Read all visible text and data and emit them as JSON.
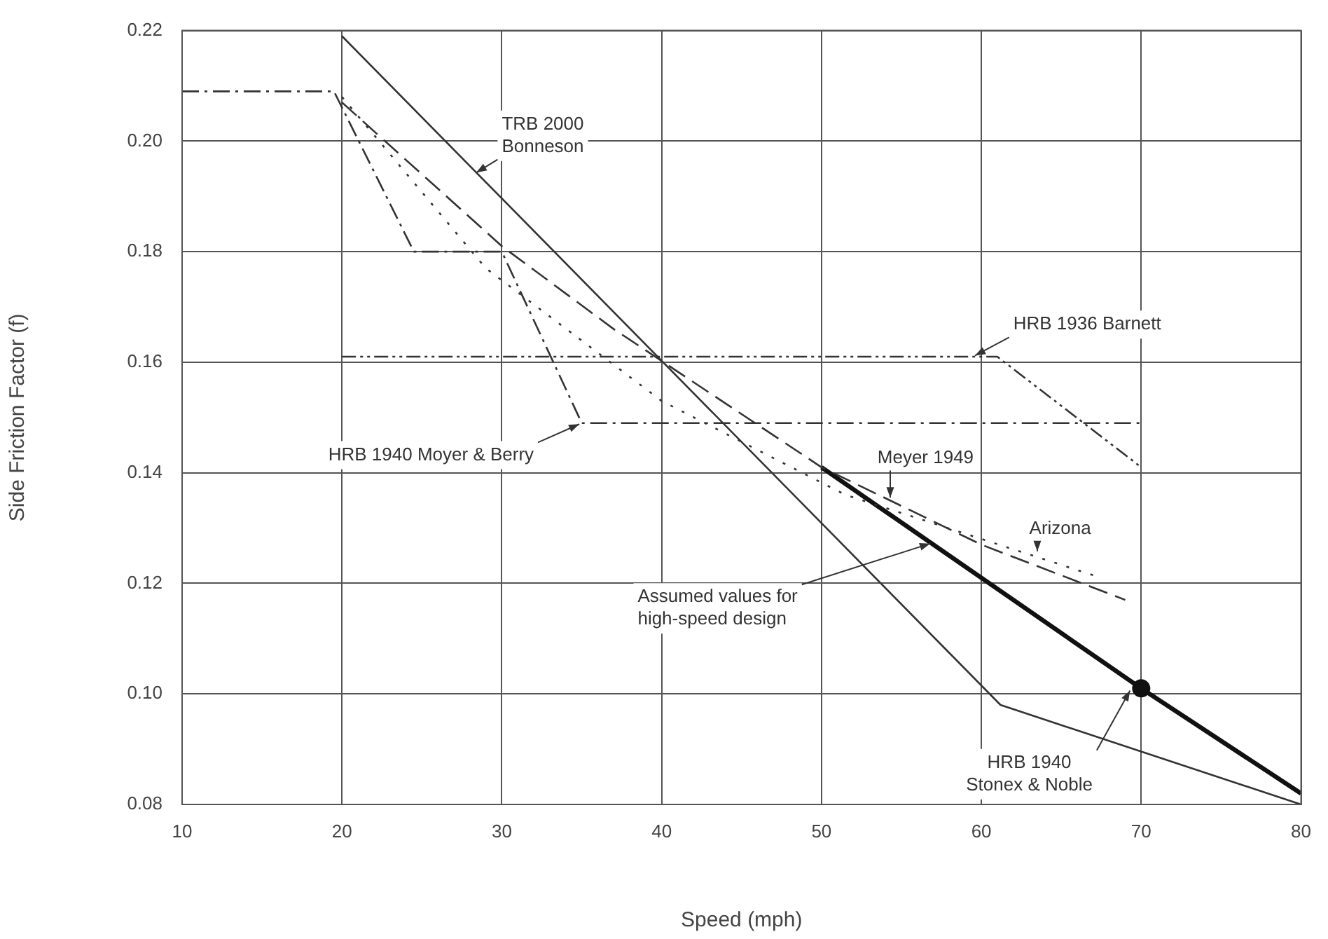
{
  "chart_data": {
    "type": "line",
    "xlabel": "Speed (mph)",
    "ylabel": "Side Friction Factor (f)",
    "xlim": [
      10,
      80
    ],
    "xticks": [
      10,
      20,
      30,
      40,
      50,
      60,
      70,
      80
    ],
    "ylim": [
      0.08,
      0.22
    ],
    "yticks": [
      0.08,
      {
        "value": 0.1,
        "label": "0.10"
      },
      0.12,
      0.14,
      0.16,
      0.18,
      {
        "value": 0.2,
        "label": "0.20"
      },
      0.22
    ],
    "grid": true,
    "legend": false,
    "marker": "none",
    "series": [
      {
        "name": "TRB 2000\nBonneson",
        "color": "#333333",
        "line_style": "solid",
        "x": [
          20,
          61.2,
          80
        ],
        "values": [
          0.219,
          0.098,
          0.08
        ]
      },
      {
        "name": "Meyer 1949",
        "color": "#333333",
        "line_style": "dashed",
        "x": [
          20,
          30,
          37,
          50,
          60,
          69
        ],
        "values": [
          0.207,
          0.181,
          0.166,
          0.141,
          0.127,
          0.117
        ]
      },
      {
        "name": "HRB 1936 Barnett",
        "color": "#333333",
        "line_style": "dashdotdot",
        "x": [
          20,
          61,
          70
        ],
        "values": [
          0.161,
          0.161,
          0.141
        ]
      },
      {
        "name": "HRB 1940 Moyer & Berry",
        "color": "#333333",
        "line_style": "dashdot",
        "x": [
          10,
          19.5,
          24.5,
          30,
          35,
          70
        ],
        "values": [
          0.209,
          0.209,
          0.18,
          0.18,
          0.149,
          0.149
        ]
      },
      {
        "name": "Arizona",
        "color": "#333333",
        "line_style": "dotted",
        "x": [
          20,
          29,
          40,
          51.5,
          67.5
        ],
        "values": [
          0.208,
          0.177,
          0.153,
          0.136,
          0.121
        ]
      },
      {
        "name": "Assumed values for\nhigh-speed design",
        "color": "#111111",
        "line_style": "solid",
        "x": [
          50,
          70,
          80
        ],
        "values": [
          0.141,
          0.101,
          0.082
        ]
      },
      {
        "name": "HRB 1940\nStonex & Noble",
        "type": "scatter",
        "marker": "circle",
        "color": "#111111",
        "x": [
          70
        ],
        "values": [
          0.101
        ]
      }
    ]
  }
}
